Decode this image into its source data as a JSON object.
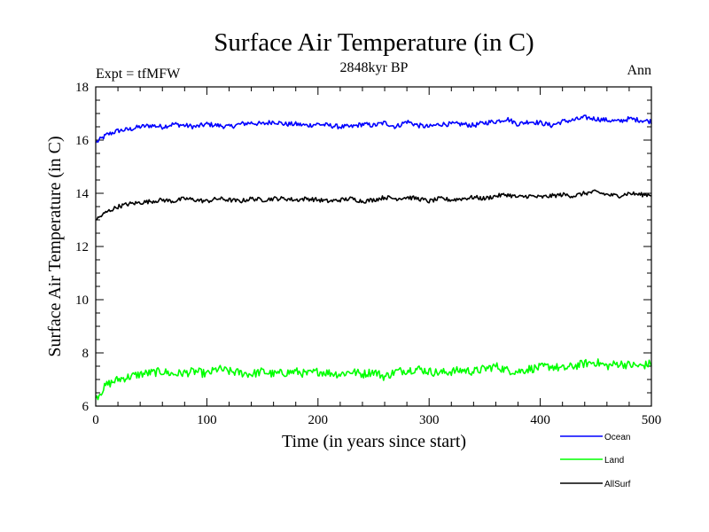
{
  "chart_data": {
    "type": "line",
    "title": "Surface Air Temperature (in C)",
    "subtitle": "2848kyr BP",
    "left_label": "Expt = tfMFW",
    "right_label": "Ann",
    "xlabel": "Time (in years since start)",
    "ylabel": "Surface Air Temperature (in C)",
    "xlim": [
      0,
      500
    ],
    "ylim": [
      6,
      18
    ],
    "x_ticks": [
      0,
      100,
      200,
      300,
      400,
      500
    ],
    "y_ticks": [
      6,
      8,
      10,
      12,
      14,
      16,
      18
    ],
    "x_tick_labels": [
      "0",
      "100",
      "200",
      "300",
      "400",
      "500"
    ],
    "y_tick_labels": [
      "6",
      "8",
      "10",
      "12",
      "14",
      "16",
      "18"
    ],
    "legend_position": "bottom-right, outside plot",
    "series": [
      {
        "name": "Ocean",
        "color": "#0000ff",
        "x": [
          0,
          10,
          20,
          30,
          40,
          50,
          60,
          70,
          80,
          90,
          100,
          110,
          120,
          130,
          140,
          150,
          160,
          170,
          180,
          190,
          200,
          210,
          220,
          230,
          240,
          250,
          260,
          270,
          280,
          290,
          300,
          310,
          320,
          330,
          340,
          350,
          360,
          370,
          380,
          390,
          400,
          410,
          420,
          430,
          440,
          450,
          460,
          470,
          480,
          490,
          500
        ],
        "values": [
          15.9,
          16.2,
          16.35,
          16.4,
          16.5,
          16.55,
          16.5,
          16.6,
          16.55,
          16.5,
          16.6,
          16.55,
          16.5,
          16.6,
          16.65,
          16.6,
          16.7,
          16.6,
          16.6,
          16.55,
          16.6,
          16.55,
          16.5,
          16.5,
          16.6,
          16.55,
          16.65,
          16.5,
          16.7,
          16.55,
          16.5,
          16.6,
          16.6,
          16.6,
          16.55,
          16.65,
          16.7,
          16.8,
          16.6,
          16.7,
          16.65,
          16.55,
          16.7,
          16.75,
          16.85,
          16.8,
          16.75,
          16.7,
          16.8,
          16.75,
          16.7
        ]
      },
      {
        "name": "Land",
        "color": "#00ff00",
        "x": [
          0,
          10,
          20,
          30,
          40,
          50,
          60,
          70,
          80,
          90,
          100,
          110,
          120,
          130,
          140,
          150,
          160,
          170,
          180,
          190,
          200,
          210,
          220,
          230,
          240,
          250,
          260,
          270,
          280,
          290,
          300,
          310,
          320,
          330,
          340,
          350,
          360,
          370,
          380,
          390,
          400,
          410,
          420,
          430,
          440,
          450,
          460,
          470,
          480,
          490,
          500
        ],
        "values": [
          6.3,
          6.8,
          7.0,
          7.1,
          7.2,
          7.25,
          7.3,
          7.2,
          7.25,
          7.3,
          7.2,
          7.4,
          7.3,
          7.25,
          7.2,
          7.3,
          7.2,
          7.25,
          7.3,
          7.2,
          7.3,
          7.25,
          7.2,
          7.3,
          7.2,
          7.3,
          7.1,
          7.3,
          7.35,
          7.4,
          7.3,
          7.25,
          7.3,
          7.35,
          7.3,
          7.4,
          7.5,
          7.35,
          7.3,
          7.4,
          7.45,
          7.5,
          7.4,
          7.5,
          7.6,
          7.65,
          7.5,
          7.6,
          7.55,
          7.5,
          7.6
        ]
      },
      {
        "name": "AllSurf",
        "color": "#000000",
        "x": [
          0,
          10,
          20,
          30,
          40,
          50,
          60,
          70,
          80,
          90,
          100,
          110,
          120,
          130,
          140,
          150,
          160,
          170,
          180,
          190,
          200,
          210,
          220,
          230,
          240,
          250,
          260,
          270,
          280,
          290,
          300,
          310,
          320,
          330,
          340,
          350,
          360,
          370,
          380,
          390,
          400,
          410,
          420,
          430,
          440,
          450,
          460,
          470,
          480,
          490,
          500
        ],
        "values": [
          13.0,
          13.3,
          13.5,
          13.6,
          13.65,
          13.7,
          13.75,
          13.7,
          13.8,
          13.75,
          13.7,
          13.8,
          13.75,
          13.7,
          13.8,
          13.75,
          13.8,
          13.8,
          13.75,
          13.8,
          13.75,
          13.7,
          13.75,
          13.8,
          13.7,
          13.75,
          13.85,
          13.8,
          13.85,
          13.8,
          13.7,
          13.8,
          13.75,
          13.8,
          13.85,
          13.8,
          13.9,
          13.95,
          13.85,
          13.9,
          13.85,
          13.9,
          13.95,
          13.9,
          14.0,
          14.05,
          13.95,
          13.9,
          14.0,
          13.95,
          13.95
        ]
      }
    ]
  }
}
